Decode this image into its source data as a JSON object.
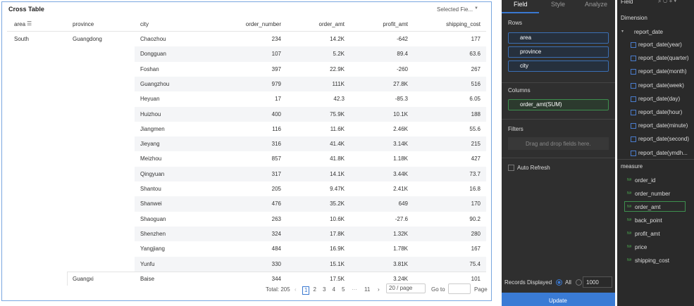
{
  "header": {
    "title": "Cross Table",
    "selector": "Selected Fie..."
  },
  "table": {
    "columns": [
      "area",
      "province",
      "city",
      "order_number",
      "order_amt",
      "profit_amt",
      "shipping_cost"
    ],
    "rows": [
      [
        "South",
        "Guangdong",
        "Chaozhou",
        "234",
        "14.2K",
        "-642",
        "177"
      ],
      [
        null,
        null,
        "Dongguan",
        "107",
        "5.2K",
        "89.4",
        "63.6"
      ],
      [
        null,
        null,
        "Foshan",
        "397",
        "22.9K",
        "-260",
        "267"
      ],
      [
        null,
        null,
        "Guangzhou",
        "979",
        "111K",
        "27.8K",
        "516"
      ],
      [
        null,
        null,
        "Heyuan",
        "17",
        "42.3",
        "-85.3",
        "6.05"
      ],
      [
        null,
        null,
        "Huizhou",
        "400",
        "75.9K",
        "10.1K",
        "188"
      ],
      [
        null,
        null,
        "Jiangmen",
        "116",
        "11.6K",
        "2.46K",
        "55.6"
      ],
      [
        null,
        null,
        "Jieyang",
        "316",
        "41.4K",
        "3.14K",
        "215"
      ],
      [
        null,
        null,
        "Meizhou",
        "857",
        "41.8K",
        "1.18K",
        "427"
      ],
      [
        null,
        null,
        "Qingyuan",
        "317",
        "14.1K",
        "3.44K",
        "73.7"
      ],
      [
        null,
        null,
        "Shantou",
        "205",
        "9.47K",
        "2.41K",
        "16.8"
      ],
      [
        null,
        null,
        "Shanwei",
        "476",
        "35.2K",
        "649",
        "170"
      ],
      [
        null,
        null,
        "Shaoguan",
        "263",
        "10.6K",
        "-27.6",
        "90.2"
      ],
      [
        null,
        null,
        "Shenzhen",
        "324",
        "17.8K",
        "1.32K",
        "280"
      ],
      [
        null,
        null,
        "Yangjiang",
        "484",
        "16.9K",
        "1.78K",
        "167"
      ],
      [
        null,
        null,
        "Yunfu",
        "330",
        "15.1K",
        "3.81K",
        "75.4"
      ],
      [
        null,
        "Guangxi",
        "Baise",
        "344",
        "17.5K",
        "3.24K",
        "101"
      ]
    ]
  },
  "pagination": {
    "total": "Total: 205",
    "pages": [
      "1",
      "2",
      "3",
      "4",
      "5"
    ],
    "ellipsis": "···",
    "last": "11",
    "page_size": "20 / page",
    "goto": "Go to",
    "page": "Page"
  },
  "panel": {
    "tabs": [
      "Field",
      "Style",
      "Analyze"
    ],
    "rows_label": "Rows",
    "rows": [
      "area",
      "province",
      "city"
    ],
    "columns_label": "Columns",
    "columns": [
      "order_amt(SUM)"
    ],
    "filters_label": "Filters",
    "filters_placeholder": "Drag and drop fields here.",
    "auto_refresh": "Auto Refresh",
    "records_label": "Records Displayed",
    "records_all": "All",
    "records_count": "1000",
    "update": "Update"
  },
  "fields": {
    "title": "Field",
    "dimension_label": "Dimension",
    "dimension": "report_date",
    "dimension_children": [
      "report_date(year)",
      "report_date(quarter)",
      "report_date(month)",
      "report_date(week)",
      "report_date(day)",
      "report_date(hour)",
      "report_date(minute)",
      "report_date(second)",
      "report_date(ymdh..."
    ],
    "measure_label": "measure",
    "measures": [
      "order_id",
      "order_number",
      "order_amt",
      "back_point",
      "profit_amt",
      "price",
      "shipping_cost"
    ]
  }
}
